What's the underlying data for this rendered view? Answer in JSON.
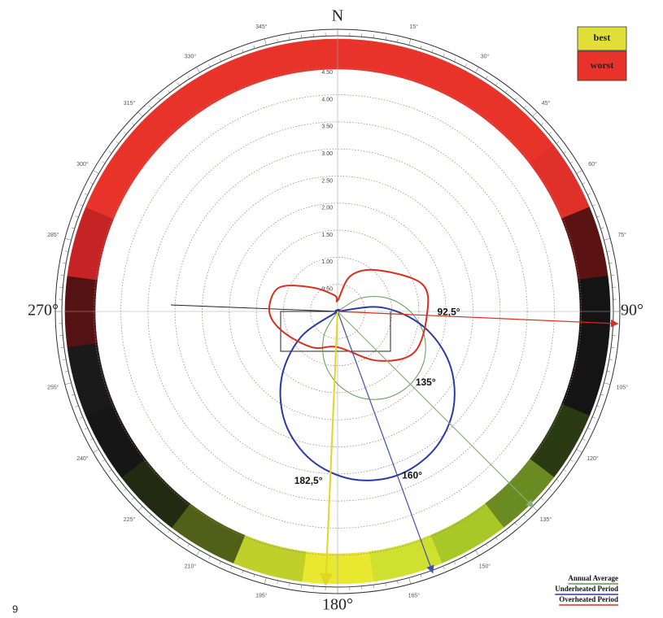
{
  "chart_data": {
    "type": "polar",
    "rlim": [
      0,
      5
    ],
    "rticks": [
      {
        "value": 0.5,
        "label": "0.50"
      },
      {
        "value": 1,
        "label": "1.00"
      },
      {
        "value": 1.5,
        "label": "1.50"
      },
      {
        "value": 2,
        "label": "2.00"
      },
      {
        "value": 2.5,
        "label": "2.50"
      },
      {
        "value": 3,
        "label": "3.00"
      },
      {
        "value": 3.5,
        "label": "3.50"
      },
      {
        "value": 4,
        "label": "4.00"
      },
      {
        "value": 4.5,
        "label": "4.50"
      }
    ],
    "thetaticks": [
      {
        "value": 15,
        "label": "15°"
      },
      {
        "value": 30,
        "label": "30°"
      },
      {
        "value": 45,
        "label": "45°"
      },
      {
        "value": 60,
        "label": "60°"
      },
      {
        "value": 75,
        "label": "75°"
      },
      {
        "value": 105,
        "label": "105°"
      },
      {
        "value": 120,
        "label": "120°"
      },
      {
        "value": 135,
        "label": "135°"
      },
      {
        "value": 150,
        "label": "150°"
      },
      {
        "value": 165,
        "label": "165°"
      },
      {
        "value": 195,
        "label": "195°"
      },
      {
        "value": 210,
        "label": "210°"
      },
      {
        "value": 225,
        "label": "225°"
      },
      {
        "value": 240,
        "label": "240°"
      },
      {
        "value": 255,
        "label": "255°"
      },
      {
        "value": 285,
        "label": "285°"
      },
      {
        "value": 300,
        "label": "300°"
      },
      {
        "value": 315,
        "label": "315°"
      },
      {
        "value": 330,
        "label": "330°"
      },
      {
        "value": 345,
        "label": "345°"
      }
    ],
    "cardinals": [
      {
        "value": 0,
        "label": "N"
      },
      {
        "value": 90,
        "label": "90°"
      },
      {
        "value": 180,
        "label": "180°"
      },
      {
        "value": 270,
        "label": "270°"
      }
    ],
    "band_colors": [
      "#e8332a",
      "#e8332a",
      "#e8332a",
      "#e8332a",
      "#e0302a",
      "#5a1212",
      "#141414",
      "#141414",
      "#2a3a12",
      "#6a8a22",
      "#a8c828",
      "#d0e030",
      "#e8e830",
      "#c0d02a",
      "#506018",
      "#222a12",
      "#161616",
      "#1a1a1a",
      "#551212",
      "#c42424",
      "#e8332a",
      "#e8332a",
      "#e8332a",
      "#e8332a"
    ],
    "scale_legend": [
      {
        "label": "best",
        "color": "#e0e038"
      },
      {
        "label": "worst",
        "color": "#e8332a"
      }
    ],
    "series": [
      {
        "name": "Annual Average",
        "color": "#5f9a52",
        "theta": [
          45,
          60,
          75,
          90,
          105,
          120,
          135,
          150,
          165,
          180,
          195,
          210,
          225
        ],
        "values": [
          0,
          0.49,
          0.95,
          1.34,
          1.65,
          1.84,
          1.9,
          1.84,
          1.65,
          1.34,
          0.95,
          0.49,
          0
        ]
      },
      {
        "name": "Underheated Period",
        "color": "#2a3aa8",
        "theta": [
          70,
          85,
          100,
          115,
          130,
          145,
          160,
          175,
          190,
          205,
          220,
          235,
          250
        ],
        "values": [
          0,
          0.83,
          1.61,
          2.28,
          2.79,
          3.11,
          3.22,
          3.11,
          2.79,
          2.28,
          1.61,
          0.83,
          0
        ]
      },
      {
        "name": "Overheated Period",
        "color": "#d83020",
        "theta": [
          0,
          20,
          44,
          72,
          92.5,
          118.5,
          141,
          180,
          215,
          250,
          270,
          292,
          313,
          350
        ],
        "values": [
          0.2,
          0.7,
          1.06,
          1.64,
          1.65,
          1.6,
          1.17,
          0.66,
          0.81,
          1.08,
          1.26,
          1.17,
          0.65,
          0.3
        ]
      }
    ],
    "directions": [
      {
        "angle": 92.5,
        "r": 4.66,
        "label": "92,5°",
        "color": "#d83020"
      },
      {
        "angle": 135,
        "r": 4.6,
        "label": "135°",
        "color": "#8ab07a"
      },
      {
        "angle": 160,
        "r": 4.62,
        "label": "160°",
        "color": "#4050b0"
      },
      {
        "angle": 182.5,
        "r": 4.55,
        "label": "182,5°",
        "color": "#e0d820"
      }
    ],
    "page_number": "9"
  }
}
